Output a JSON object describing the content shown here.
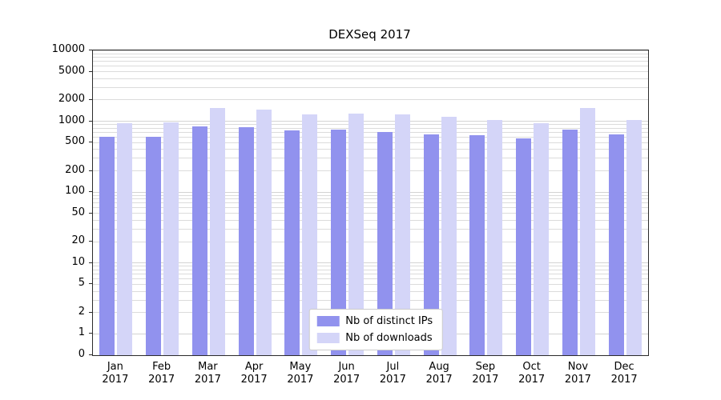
{
  "chart_data": {
    "type": "bar",
    "title": "DEXSeq 2017",
    "categories": [
      "Jan",
      "Feb",
      "Mar",
      "Apr",
      "May",
      "Jun",
      "Jul",
      "Aug",
      "Sep",
      "Oct",
      "Nov",
      "Dec"
    ],
    "year": "2017",
    "series": [
      {
        "name": "Nb of distinct IPs",
        "color": "#9192ee",
        "values": [
          600,
          600,
          850,
          820,
          740,
          770,
          710,
          650,
          630,
          570,
          770,
          650
        ]
      },
      {
        "name": "Nb of downloads",
        "color": "#d4d5f8",
        "values": [
          950,
          960,
          1550,
          1450,
          1250,
          1300,
          1250,
          1150,
          1050,
          950,
          1550,
          1050
        ]
      }
    ],
    "y_ticks": [
      0,
      1,
      2,
      5,
      10,
      20,
      50,
      100,
      200,
      500,
      1000,
      2000,
      5000,
      10000
    ],
    "yscale": "log",
    "ylim": [
      0,
      10000
    ],
    "grid": true,
    "legend_position": "lower center"
  }
}
